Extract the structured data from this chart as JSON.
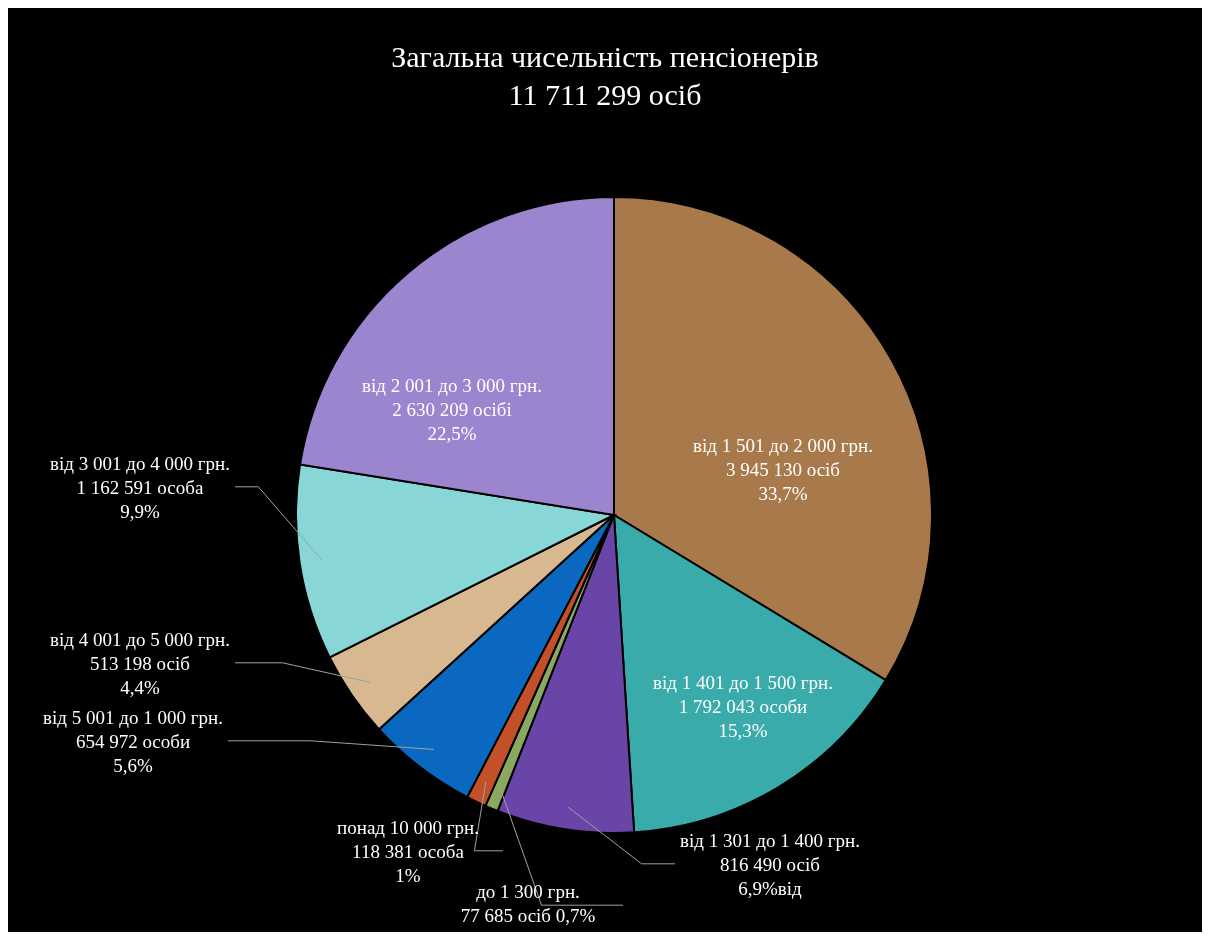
{
  "chart_data": {
    "type": "pie",
    "title": "Загальна чисельність пенсіонерів",
    "subtitle": "11 711 299 осіб",
    "categories": [
      "від 1 501 до 2 000 грн.",
      "від 1 401 до 1 500 грн.",
      "від 1 301 до 1 400 грн.",
      "до 1 300 грн.",
      "понад 10 000 грн.",
      "від 5 001 до 1 000 грн.",
      "від 4 001 до 5 000 грн.",
      "від 3 001 до 4 000 грн.",
      "від 2 001 до 3 000 грн."
    ],
    "values": [
      3945130,
      1792043,
      816490,
      77685,
      118381,
      654972,
      513198,
      1162591,
      2630209
    ],
    "value_labels": [
      "3 945 130 осіб\n33,7%",
      "1 792 043 особи\n15,3%",
      "816 490 осіб\n6,9%від",
      "77 685 осіб 0,7%",
      "118 381 особа\n1%",
      "654 972 особи\n5,6%",
      "513 198 осіб\n4,4%",
      "1 162 591 особа\n9,9%",
      "2 630 209 осібі\n22,5%"
    ],
    "colors": [
      "#a8794a",
      "#3aabab",
      "#6a45a8",
      "#8aa860",
      "#c4502a",
      "#0a68c0",
      "#d8b890",
      "#88d6d6",
      "#9b85cf"
    ],
    "legend": false
  }
}
